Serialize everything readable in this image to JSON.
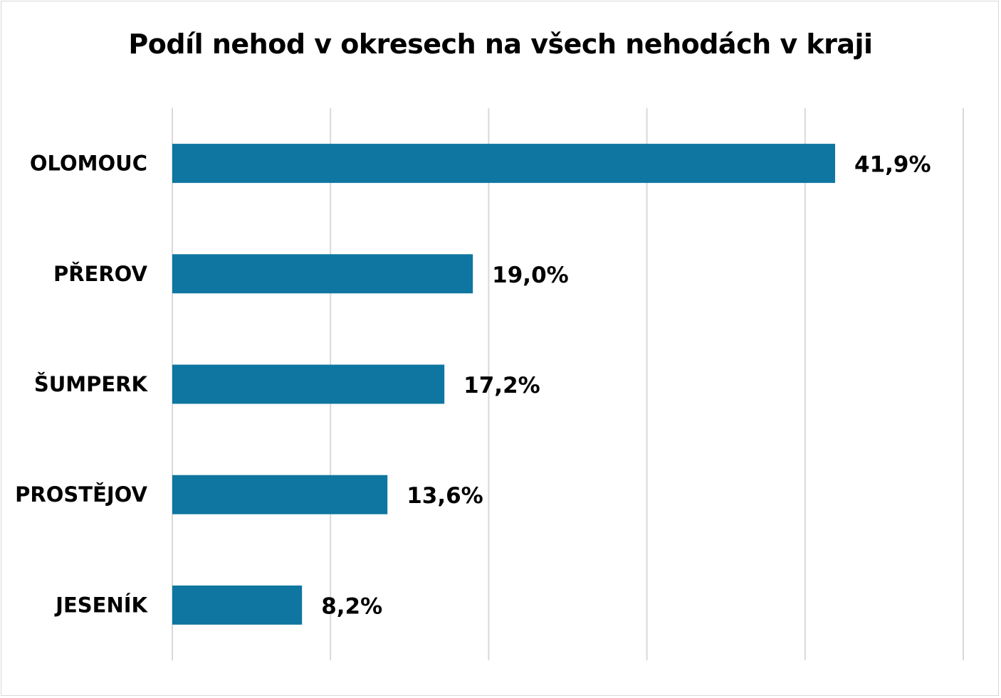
{
  "chart_data": {
    "type": "bar",
    "orientation": "horizontal",
    "title": "Podíl nehod v okresech na všech nehodách v kraji",
    "categories": [
      "OLOMOUC",
      "PŘEROV",
      "ŠUMPERK",
      "PROSTĚJOV",
      "JESENÍK"
    ],
    "values": [
      41.9,
      19.0,
      17.2,
      13.6,
      8.2
    ],
    "value_labels": [
      "41,9%",
      "19,0%",
      "17,2%",
      "13,6%",
      "8,2%"
    ],
    "xlim": [
      0,
      50
    ],
    "x_gridlines": [
      0,
      10,
      20,
      30,
      40,
      50
    ],
    "x_tick_labels_shown": false,
    "grid": true,
    "legend": "none",
    "bar_color": "#0e76a0",
    "grid_color": "#d9d9d9"
  }
}
